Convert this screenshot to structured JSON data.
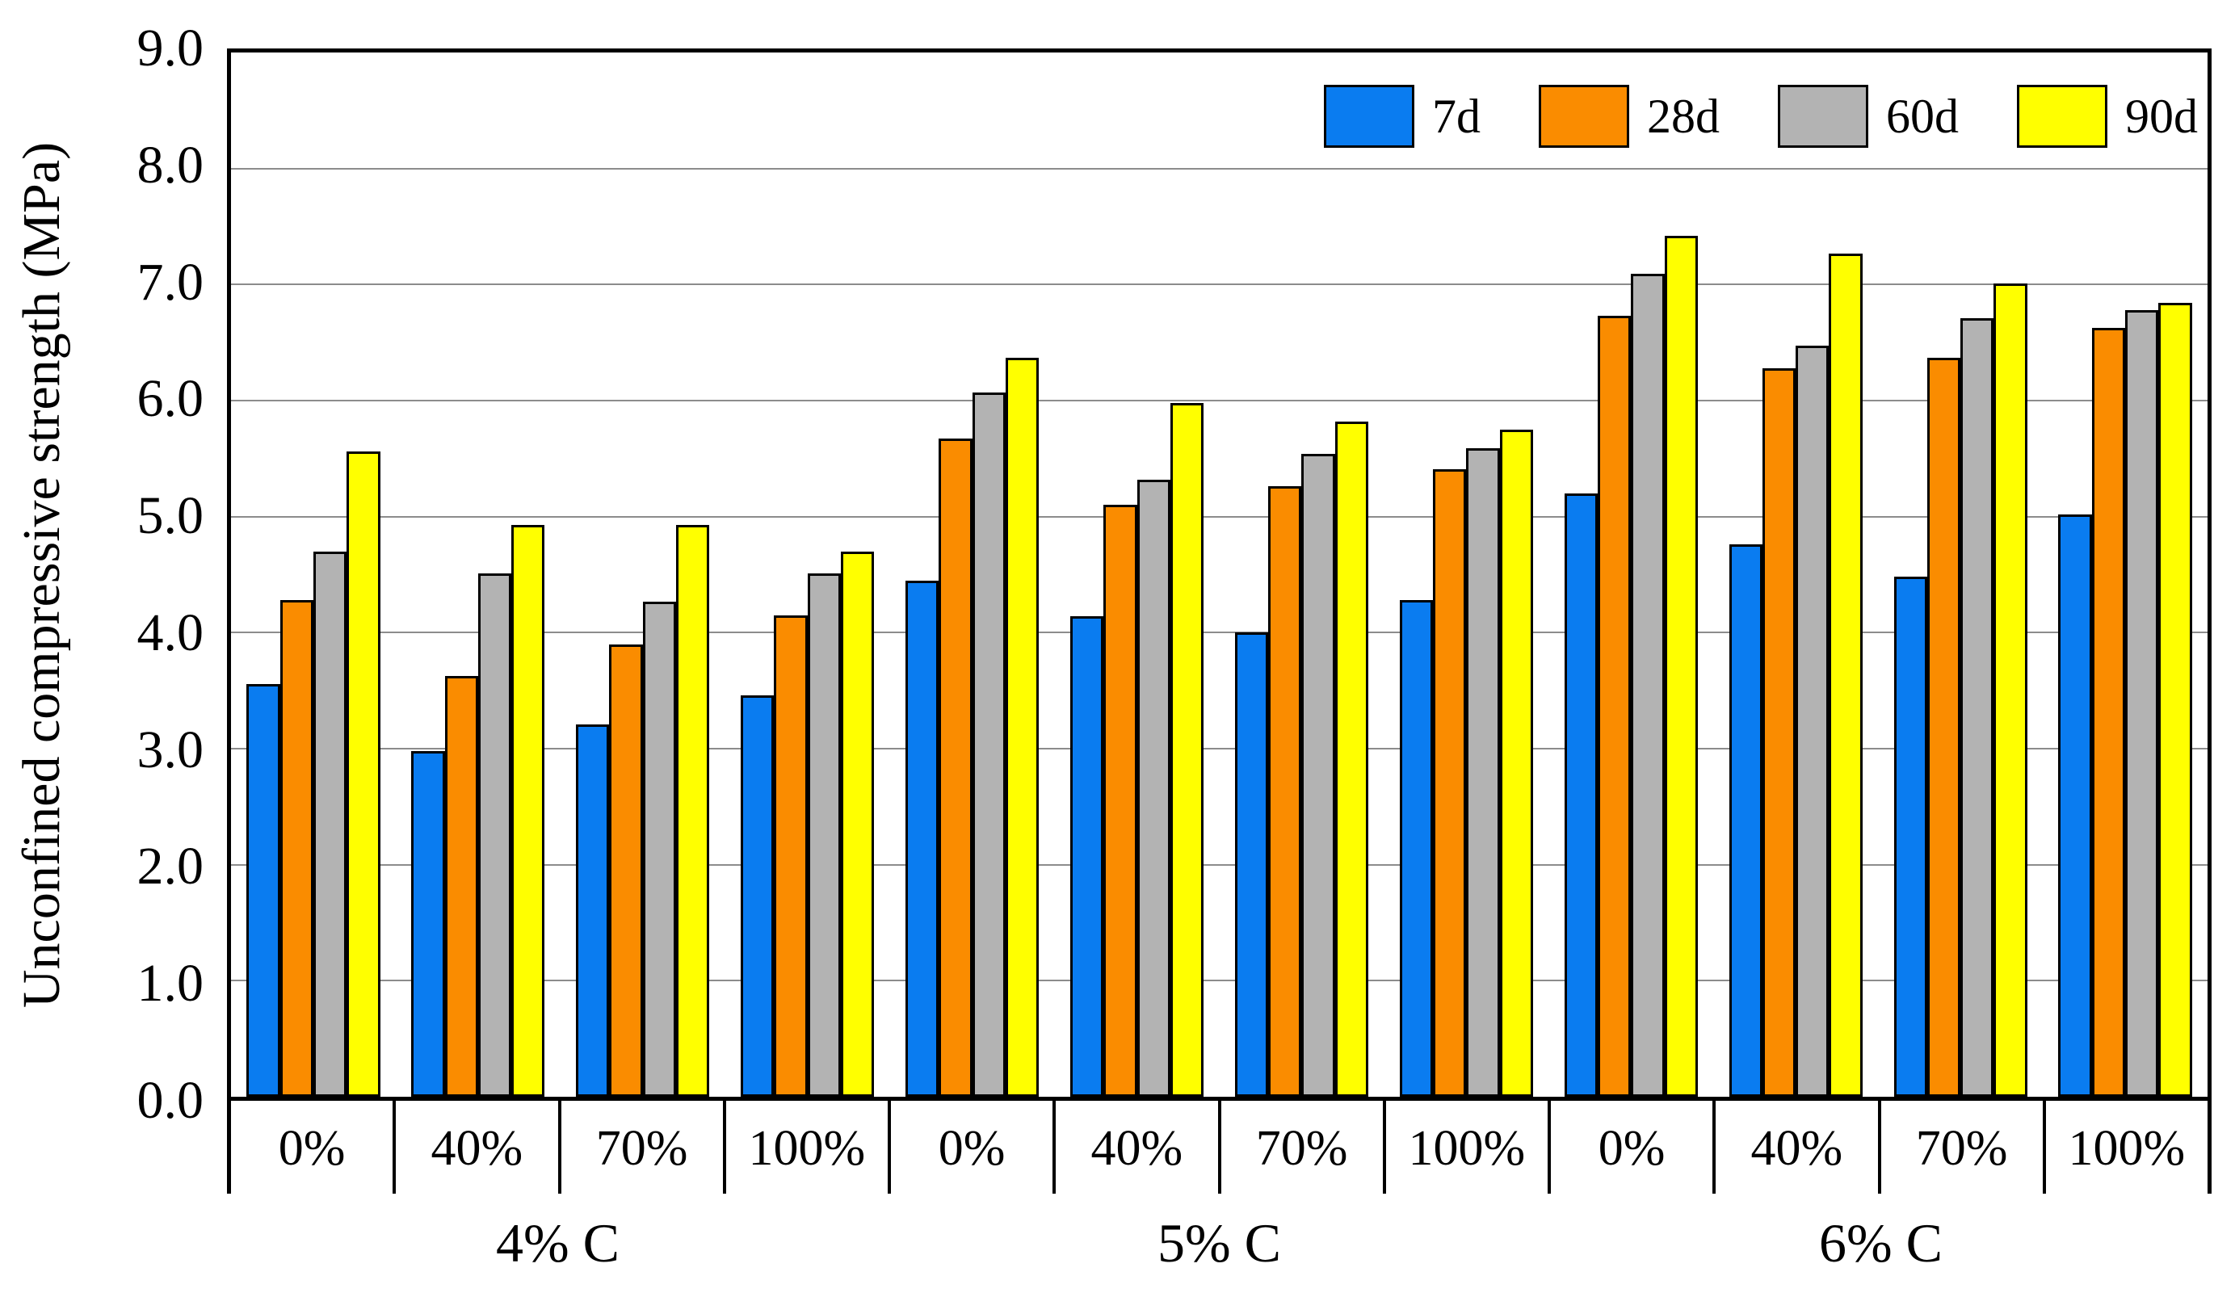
{
  "chart_data": {
    "type": "bar",
    "title": "",
    "xlabel": "",
    "ylabel": "Unconfined compressive strength (MPa)",
    "ylim": [
      0,
      9
    ],
    "ytick_step": 1.0,
    "ytick_labels": [
      "0.0",
      "1.0",
      "2.0",
      "3.0",
      "4.0",
      "5.0",
      "6.0",
      "7.0",
      "8.0",
      "9.0"
    ],
    "grid": "horizontal",
    "legend_position": "top-right-inside",
    "categories": [
      "0%",
      "40%",
      "70%",
      "100%",
      "0%",
      "40%",
      "70%",
      "100%",
      "0%",
      "40%",
      "70%",
      "100%"
    ],
    "major_groups": [
      "4% C",
      "5% C",
      "6% C"
    ],
    "series": [
      {
        "name": "7d",
        "color": "#0a7cf0",
        "values": [
          3.56,
          2.98,
          3.21,
          3.46,
          4.45,
          4.14,
          4.0,
          4.28,
          5.2,
          4.76,
          4.48,
          5.02
        ]
      },
      {
        "name": "28d",
        "color": "#fa8c00",
        "values": [
          4.28,
          3.63,
          3.9,
          4.15,
          5.67,
          5.1,
          5.26,
          5.41,
          6.73,
          6.28,
          6.37,
          6.63
        ]
      },
      {
        "name": "60d",
        "color": "#b3b3b3",
        "values": [
          4.7,
          4.51,
          4.27,
          4.51,
          6.07,
          5.32,
          5.54,
          5.59,
          7.09,
          6.47,
          6.71,
          6.78
        ]
      },
      {
        "name": "90d",
        "color": "#ffff00",
        "values": [
          5.56,
          4.93,
          4.93,
          4.7,
          6.37,
          5.98,
          5.82,
          5.75,
          7.42,
          7.27,
          7.01,
          6.84
        ]
      }
    ]
  },
  "colors": {
    "background": "#ffffff",
    "frame": "#000000",
    "gridline": "#8c8c8c",
    "bar_border": "#000000",
    "text": "#000000"
  }
}
